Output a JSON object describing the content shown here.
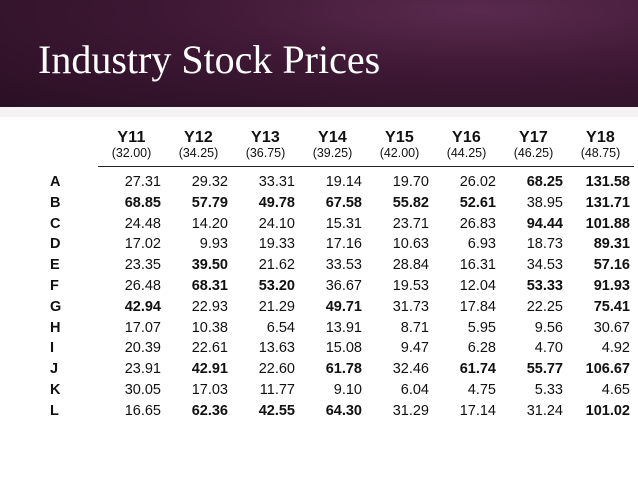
{
  "slide": {
    "title": "Industry Stock Prices"
  },
  "table": {
    "columns": [
      {
        "label": "Y11",
        "sub": "(32.00)"
      },
      {
        "label": "Y12",
        "sub": "(34.25)"
      },
      {
        "label": "Y13",
        "sub": "(36.75)"
      },
      {
        "label": "Y14",
        "sub": "(39.25)"
      },
      {
        "label": "Y15",
        "sub": "(42.00)"
      },
      {
        "label": "Y16",
        "sub": "(44.25)"
      },
      {
        "label": "Y17",
        "sub": "(46.25)"
      },
      {
        "label": "Y18",
        "sub": "(48.75)"
      }
    ],
    "rows": [
      {
        "label": "A",
        "values": [
          "27.31",
          "29.32",
          "33.31",
          "19.14",
          "19.70",
          "26.02",
          "68.25",
          "131.58"
        ],
        "bold": [
          false,
          false,
          false,
          false,
          false,
          false,
          true,
          true
        ]
      },
      {
        "label": "B",
        "values": [
          "68.85",
          "57.79",
          "49.78",
          "67.58",
          "55.82",
          "52.61",
          "38.95",
          "131.71"
        ],
        "bold": [
          true,
          true,
          true,
          true,
          true,
          true,
          false,
          true
        ]
      },
      {
        "label": "C",
        "values": [
          "24.48",
          "14.20",
          "24.10",
          "15.31",
          "23.71",
          "26.83",
          "94.44",
          "101.88"
        ],
        "bold": [
          false,
          false,
          false,
          false,
          false,
          false,
          true,
          true
        ]
      },
      {
        "label": "D",
        "values": [
          "17.02",
          "9.93",
          "19.33",
          "17.16",
          "10.63",
          "6.93",
          "18.73",
          "89.31"
        ],
        "bold": [
          false,
          false,
          false,
          false,
          false,
          false,
          false,
          true
        ]
      },
      {
        "label": "E",
        "values": [
          "23.35",
          "39.50",
          "21.62",
          "33.53",
          "28.84",
          "16.31",
          "34.53",
          "57.16"
        ],
        "bold": [
          false,
          true,
          false,
          false,
          false,
          false,
          false,
          true
        ]
      },
      {
        "label": "F",
        "values": [
          "26.48",
          "68.31",
          "53.20",
          "36.67",
          "19.53",
          "12.04",
          "53.33",
          "91.93"
        ],
        "bold": [
          false,
          true,
          true,
          false,
          false,
          false,
          true,
          true
        ]
      },
      {
        "label": "G",
        "values": [
          "42.94",
          "22.93",
          "21.29",
          "49.71",
          "31.73",
          "17.84",
          "22.25",
          "75.41"
        ],
        "bold": [
          true,
          false,
          false,
          true,
          false,
          false,
          false,
          true
        ]
      },
      {
        "label": "H",
        "values": [
          "17.07",
          "10.38",
          "6.54",
          "13.91",
          "8.71",
          "5.95",
          "9.56",
          "30.67"
        ],
        "bold": [
          false,
          false,
          false,
          false,
          false,
          false,
          false,
          false
        ]
      },
      {
        "label": "I",
        "values": [
          "20.39",
          "22.61",
          "13.63",
          "15.08",
          "9.47",
          "6.28",
          "4.70",
          "4.92"
        ],
        "bold": [
          false,
          false,
          false,
          false,
          false,
          false,
          false,
          false
        ]
      },
      {
        "label": "J",
        "values": [
          "23.91",
          "42.91",
          "22.60",
          "61.78",
          "32.46",
          "61.74",
          "55.77",
          "106.67"
        ],
        "bold": [
          false,
          true,
          false,
          true,
          false,
          true,
          true,
          true
        ]
      },
      {
        "label": "K",
        "values": [
          "30.05",
          "17.03",
          "11.77",
          "9.10",
          "6.04",
          "4.75",
          "5.33",
          "4.65"
        ],
        "bold": [
          false,
          false,
          false,
          false,
          false,
          false,
          false,
          false
        ]
      },
      {
        "label": "L",
        "values": [
          "16.65",
          "62.36",
          "42.55",
          "64.30",
          "31.29",
          "17.14",
          "31.24",
          "101.02"
        ],
        "bold": [
          false,
          true,
          true,
          true,
          false,
          false,
          false,
          true
        ]
      }
    ]
  }
}
